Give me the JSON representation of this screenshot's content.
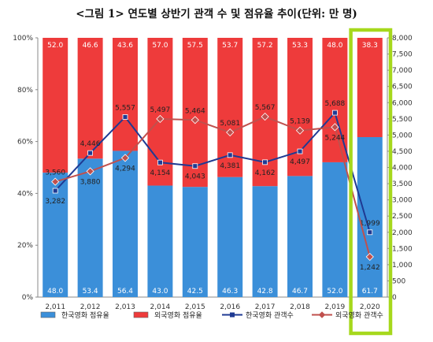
{
  "title": "<그림 1> 연도별 상반기 관객 수 및 점유율 추이(단위: 만 명)",
  "chart_data": {
    "type": "bar",
    "stacked": true,
    "categories": [
      "2,011",
      "2,012",
      "2,013",
      "2,014",
      "2,015",
      "2,016",
      "2,017",
      "2,018",
      "2,019",
      "2,020"
    ],
    "series": [
      {
        "name": "한국영화 점유율",
        "type": "bar",
        "axis": "left",
        "values": [
          48.0,
          53.4,
          56.4,
          43.0,
          42.5,
          46.3,
          42.8,
          46.7,
          52.0,
          61.7
        ],
        "labels": [
          "48.0",
          "53.4",
          "56.4",
          "43.0",
          "42.5",
          "46.3",
          "42.8",
          "46.7",
          "52.0",
          "61.7"
        ]
      },
      {
        "name": "외국영화 점유율",
        "type": "bar",
        "axis": "left",
        "values": [
          52.0,
          46.6,
          43.6,
          57.0,
          57.5,
          53.7,
          57.2,
          53.3,
          48.0,
          38.3
        ],
        "labels": [
          "52.0",
          "46.6",
          "43.6",
          "57.0",
          "57.5",
          "53.7",
          "57.2",
          "53.3",
          "48.0",
          "38.3"
        ]
      },
      {
        "name": "한국영화 관객수",
        "type": "line",
        "axis": "right",
        "values": [
          3282,
          4446,
          5557,
          4154,
          4043,
          4381,
          4162,
          4497,
          5688,
          1999
        ],
        "labels": [
          "3,282",
          "4,446",
          "5,557",
          "4,154",
          "4,043",
          "4,381",
          "4,162",
          "4,497",
          "5,688",
          "1,999"
        ]
      },
      {
        "name": "외국영화 관객수",
        "type": "line",
        "axis": "right",
        "values": [
          3560,
          3880,
          4294,
          5497,
          5464,
          5081,
          5567,
          5139,
          5244,
          1242
        ],
        "labels": [
          "3,560",
          "3,880",
          "4,294",
          "5,497",
          "5,464",
          "5,081",
          "5,567",
          "5,139",
          "5,244",
          "1,242"
        ]
      }
    ],
    "y_left": {
      "min": 0,
      "max": 100,
      "ticks": [
        "0%",
        "20%",
        "40%",
        "60%",
        "80%",
        "100%"
      ]
    },
    "y_right": {
      "min": 0,
      "max": 8000,
      "ticks": [
        "0",
        "500",
        "1,000",
        "1,500",
        "2,000",
        "2,500",
        "3,000",
        "3,500",
        "4,000",
        "4,500",
        "5,000",
        "5,500",
        "6,000",
        "6,500",
        "7,000",
        "7,500",
        "8,000"
      ]
    },
    "legend_position": "bottom",
    "highlight_category": "2,020"
  },
  "colors": {
    "korean_bar": "#3b8fd9",
    "foreign_bar": "#ee3b3b",
    "korean_line": "#1f3a93",
    "foreign_line": "#c0504d",
    "highlight": "#a6d81c",
    "bar_label_korean": "#ffffff",
    "bar_label_foreign": "#ffffff"
  }
}
